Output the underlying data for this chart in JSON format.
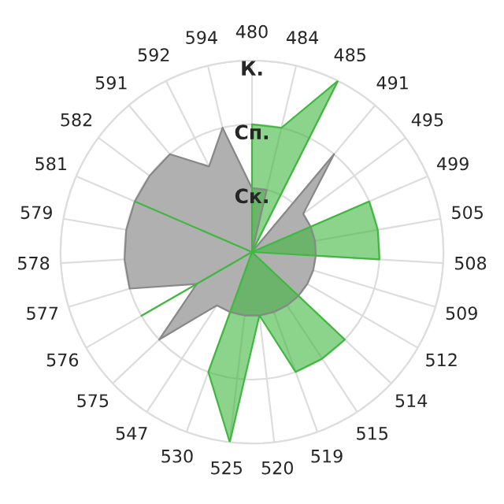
{
  "chart_data": {
    "type": "radar",
    "categories": [
      "480",
      "484",
      "485",
      "491",
      "495",
      "499",
      "505",
      "508",
      "509",
      "512",
      "514",
      "515",
      "519",
      "520",
      "525",
      "530",
      "547",
      "575",
      "576",
      "577",
      "578",
      "579",
      "581",
      "582",
      "591",
      "592",
      "594"
    ],
    "series": [
      {
        "color": "#b0b0b0",
        "values": [
          1,
          1,
          0,
          2,
          1,
          1,
          1,
          1,
          1,
          1,
          1,
          1,
          1,
          1,
          1,
          1,
          1,
          2,
          1,
          2,
          2,
          2,
          2,
          2,
          2,
          1.5,
          2
        ]
      },
      {
        "color": "#40b840",
        "values": [
          2,
          2,
          3,
          0,
          0,
          2,
          2,
          2,
          0,
          0,
          2,
          2,
          2,
          1,
          3,
          2,
          0,
          0,
          2,
          0,
          0,
          0,
          2,
          0,
          0,
          0,
          0
        ]
      }
    ],
    "ylim": [
      0,
      3
    ],
    "yticks": [
      {
        "value": 1,
        "label": "Ск."
      },
      {
        "value": 2,
        "label": "Сп."
      },
      {
        "value": 3,
        "label": "К."
      }
    ],
    "grid": true
  }
}
